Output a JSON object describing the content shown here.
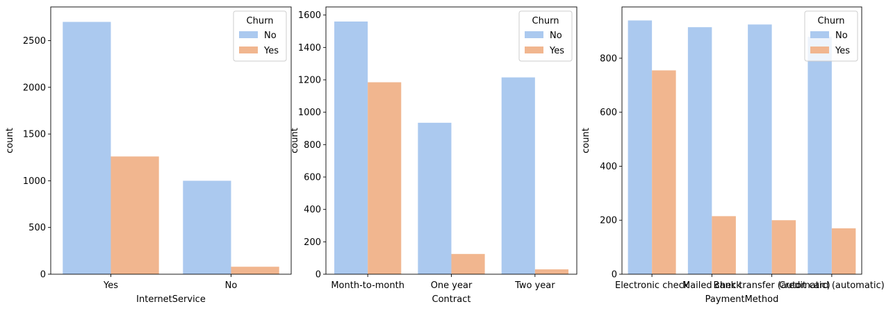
{
  "colors": {
    "No": "#abc9ef",
    "Yes": "#f1b68f"
  },
  "chart_data": [
    {
      "type": "bar",
      "xlabel": "InternetService",
      "ylabel": "count",
      "categories": [
        "Yes",
        "No"
      ],
      "series": [
        {
          "name": "No",
          "values": [
            2700,
            1000
          ]
        },
        {
          "name": "Yes",
          "values": [
            1260,
            80
          ]
        }
      ],
      "ylim": [
        0,
        2860
      ],
      "yticks": [
        0,
        500,
        1000,
        1500,
        2000,
        2500
      ],
      "legend": {
        "title": "Churn",
        "placement": "top-right"
      },
      "grid": false
    },
    {
      "type": "bar",
      "xlabel": "Contract",
      "ylabel": "count",
      "categories": [
        "Month-to-month",
        "One year",
        "Two year"
      ],
      "series": [
        {
          "name": "No",
          "values": [
            1560,
            935,
            1215
          ]
        },
        {
          "name": "Yes",
          "values": [
            1185,
            125,
            30
          ]
        }
      ],
      "ylim": [
        0,
        1650
      ],
      "yticks": [
        0,
        200,
        400,
        600,
        800,
        1000,
        1200,
        1400,
        1600
      ],
      "legend": {
        "title": "Churn",
        "placement": "top-right"
      },
      "grid": false
    },
    {
      "type": "bar",
      "xlabel": "PaymentMethod",
      "ylabel": "count",
      "categories": [
        "Electronic check",
        "Mailed check",
        "Bank transfer (automatic)",
        "Credit card (automatic)"
      ],
      "series": [
        {
          "name": "No",
          "values": [
            940,
            915,
            925,
            880
          ]
        },
        {
          "name": "Yes",
          "values": [
            755,
            215,
            200,
            170
          ]
        }
      ],
      "ylim": [
        0,
        990
      ],
      "yticks": [
        0,
        200,
        400,
        600,
        800
      ],
      "legend": {
        "title": "Churn",
        "placement": "top-right"
      },
      "grid": false
    }
  ]
}
